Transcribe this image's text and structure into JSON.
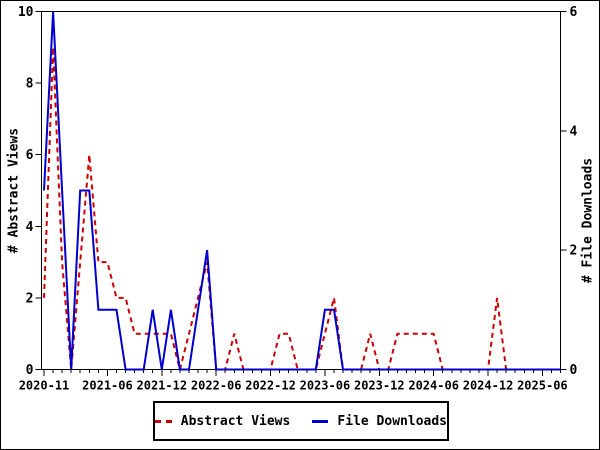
{
  "chart_data": {
    "type": "line",
    "title": "",
    "n_months": 58,
    "x_start_month": "2020-11",
    "x_tick_labels": [
      "2020-11",
      "2021-06",
      "2021-12",
      "2022-06",
      "2022-12",
      "2023-06",
      "2023-12",
      "2024-06",
      "2024-12",
      "2025-06"
    ],
    "x_tick_indices": [
      0,
      7,
      13,
      19,
      25,
      31,
      37,
      43,
      49,
      55
    ],
    "left_axis": {
      "label": "# Abstract Views",
      "ticks": [
        0,
        2,
        4,
        6,
        8,
        10
      ],
      "range": [
        0,
        10
      ]
    },
    "right_axis": {
      "label": "# File Downloads",
      "ticks": [
        0,
        2,
        4,
        6
      ],
      "range": [
        0,
        6
      ]
    },
    "grid": false,
    "legend_position": "bottom",
    "series": [
      {
        "name": "Abstract Views",
        "axis": "left",
        "color": "#cc0000",
        "style": "dashed",
        "values": [
          2,
          9,
          3,
          0,
          3,
          6,
          3,
          3,
          2,
          2,
          1,
          1,
          1,
          1,
          1,
          0,
          1,
          2,
          3,
          0,
          0,
          1,
          0,
          0,
          0,
          0,
          1,
          1,
          0,
          0,
          0,
          1,
          2,
          0,
          0,
          0,
          1,
          0,
          0,
          1,
          1,
          1,
          1,
          1,
          0,
          0,
          0,
          0,
          0,
          0,
          2,
          0,
          0,
          0,
          0,
          0,
          0,
          0
        ]
      },
      {
        "name": "File Downloads",
        "axis": "right",
        "color": "#0000cc",
        "style": "solid",
        "values": [
          3,
          6,
          3,
          0,
          3,
          3,
          1,
          1,
          1,
          0,
          0,
          0,
          1,
          0,
          1,
          0,
          0,
          1,
          2,
          0,
          0,
          0,
          0,
          0,
          0,
          0,
          0,
          0,
          0,
          0,
          0,
          1,
          1,
          0,
          0,
          0,
          0,
          0,
          0,
          0,
          0,
          0,
          0,
          0,
          0,
          0,
          0,
          0,
          0,
          0,
          0,
          0,
          0,
          0,
          0,
          0,
          0,
          0
        ]
      }
    ],
    "frame_color": "#000000",
    "background": "#ffffff"
  },
  "legend": {
    "items": [
      {
        "label": "Abstract Views",
        "color": "#cc0000",
        "style": "dashed"
      },
      {
        "label": "File Downloads",
        "color": "#0000cc",
        "style": "solid"
      }
    ]
  }
}
